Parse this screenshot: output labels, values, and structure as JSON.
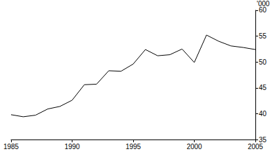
{
  "chart_data": {
    "type": "line",
    "ylabel": "'000",
    "x": [
      1985,
      1986,
      1987,
      1988,
      1989,
      1990,
      1991,
      1992,
      1993,
      1994,
      1995,
      1996,
      1997,
      1998,
      1999,
      2000,
      2001,
      2002,
      2003,
      2004,
      2005
    ],
    "values": [
      39.8,
      39.4,
      39.7,
      40.9,
      41.4,
      42.6,
      45.6,
      45.7,
      48.3,
      48.2,
      49.6,
      52.4,
      51.2,
      51.4,
      52.5,
      49.9,
      55.2,
      54.0,
      53.1,
      52.8,
      52.4
    ],
    "color": "#000000",
    "xlim": [
      1985,
      2005
    ],
    "xticks": [
      1985,
      1990,
      1995,
      2000,
      2005
    ],
    "ylim": [
      35,
      60
    ],
    "yticks": [
      35,
      40,
      45,
      50,
      55,
      60
    ],
    "grid": false
  }
}
